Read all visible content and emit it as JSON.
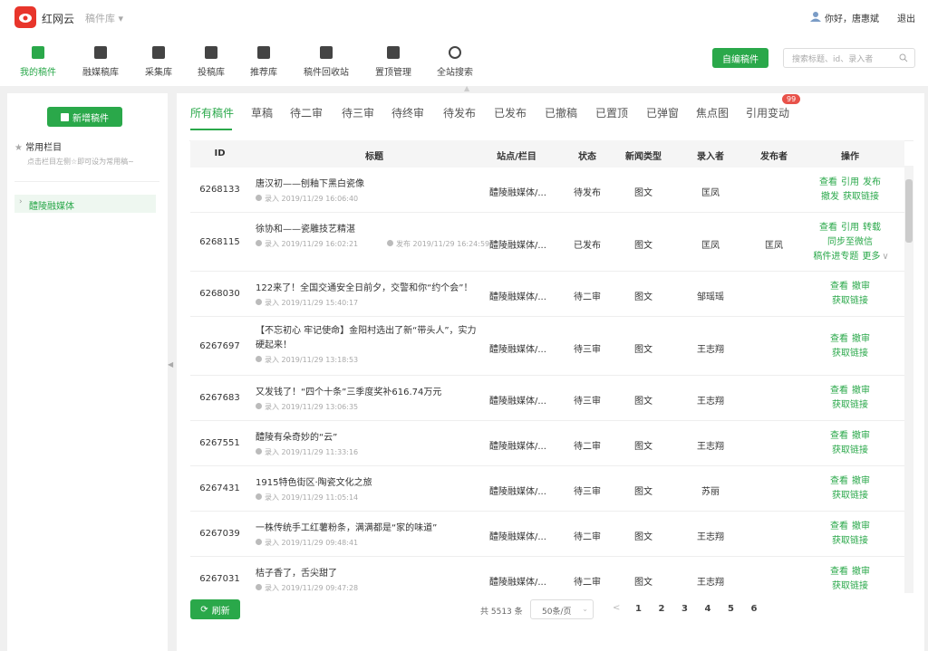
{
  "header": {
    "brand": "红网云",
    "module": "稿件库",
    "greeting": "你好，唐惠斌",
    "logout": "退出"
  },
  "toolbar": {
    "items": [
      "我的稿件",
      "融媒稿库",
      "采集库",
      "投稿库",
      "推荐库",
      "稿件回收站",
      "置顶管理",
      "全站搜索"
    ],
    "create": "自编稿件",
    "search_placeholder": "搜索标题、id、录入者"
  },
  "sidebar": {
    "new_button": "新增稿件",
    "favorites_title": "常用栏目",
    "favorites_hint": "点击栏目左侧☆即可设为常用稿~",
    "columns": [
      "醴陵融媒体"
    ]
  },
  "tabs": {
    "items": [
      "所有稿件",
      "草稿",
      "待二审",
      "待三审",
      "待终审",
      "待发布",
      "已发布",
      "已撤稿",
      "已置顶",
      "已弹窗",
      "焦点图",
      "引用变动"
    ],
    "badge": "99"
  },
  "table": {
    "headers": [
      "ID",
      "标题",
      "站点/栏目",
      "状态",
      "新闻类型",
      "录入者",
      "发布者",
      "操作"
    ],
    "rows": [
      {
        "id": "6268133",
        "title": "唐汉初——刨釉下黑白瓷像",
        "meta": [
          "录入 2019/11/29 16:06:40"
        ],
        "site": "醴陵融媒体/...",
        "status": "待发布",
        "type": "图文",
        "editor": "匡凤",
        "actions": [
          [
            "查看",
            "引用",
            "发布"
          ],
          [
            "撤发",
            "获取链接"
          ]
        ]
      },
      {
        "id": "6268115",
        "title": "徐协和——瓷雕技艺精湛",
        "meta": [
          "录入 2019/11/29 16:02:21",
          "发布 2019/11/29 16:24:59"
        ],
        "site": "醴陵融媒体/...",
        "status": "已发布",
        "type": "图文",
        "editor": "匡凤",
        "publisher": "匡凤",
        "actions": [
          [
            "查看",
            "引用",
            "转载"
          ],
          [
            "同步至微信"
          ],
          [
            "稿件进专题",
            "更多"
          ]
        ]
      },
      {
        "id": "6268030",
        "title": "122来了！全国交通安全日前夕，交警和你“约个会”！",
        "meta": [
          "录入 2019/11/29 15:40:17"
        ],
        "site": "醴陵融媒体/...",
        "status": "待二审",
        "type": "图文",
        "editor": "邹瑶瑶",
        "actions": [
          [
            "查看",
            "撤审"
          ],
          [
            "获取链接"
          ]
        ]
      },
      {
        "id": "6267697",
        "title": "【不忘初心 牢记使命】金阳村选出了新“带头人”，实力硬起来！",
        "meta": [
          "录入 2019/11/29 13:18:53"
        ],
        "site": "醴陵融媒体/...",
        "status": "待三审",
        "type": "图文",
        "editor": "王志翔",
        "actions": [
          [
            "查看",
            "撤审"
          ],
          [
            "获取链接"
          ]
        ]
      },
      {
        "id": "6267683",
        "title": "又发钱了！“四个十条”三季度奖补616.74万元",
        "meta": [
          "录入 2019/11/29 13:06:35"
        ],
        "site": "醴陵融媒体/...",
        "status": "待三审",
        "type": "图文",
        "editor": "王志翔",
        "actions": [
          [
            "查看",
            "撤审"
          ],
          [
            "获取链接"
          ]
        ]
      },
      {
        "id": "6267551",
        "title": "醴陵有朵奇妙的“云”",
        "meta": [
          "录入 2019/11/29 11:33:16"
        ],
        "site": "醴陵融媒体/...",
        "status": "待二审",
        "type": "图文",
        "editor": "王志翔",
        "actions": [
          [
            "查看",
            "撤审"
          ],
          [
            "获取链接"
          ]
        ]
      },
      {
        "id": "6267431",
        "title": "1915特色街区·陶瓷文化之旅",
        "meta": [
          "录入 2019/11/29 11:05:14"
        ],
        "site": "醴陵融媒体/...",
        "status": "待三审",
        "type": "图文",
        "editor": "苏丽",
        "actions": [
          [
            "查看",
            "撤审"
          ],
          [
            "获取链接"
          ]
        ]
      },
      {
        "id": "6267039",
        "title": "一株传统手工红薯粉条，满满都是“家的味道”",
        "meta": [
          "录入 2019/11/29 09:48:41"
        ],
        "site": "醴陵融媒体/...",
        "status": "待二审",
        "type": "图文",
        "editor": "王志翔",
        "actions": [
          [
            "查看",
            "撤审"
          ],
          [
            "获取链接"
          ]
        ]
      },
      {
        "id": "6267031",
        "title": "桔子香了，舌尖甜了",
        "meta": [
          "录入 2019/11/29 09:47:28"
        ],
        "site": "醴陵融媒体/...",
        "status": "待二审",
        "type": "图文",
        "editor": "王志翔",
        "actions": [
          [
            "查看",
            "撤审"
          ],
          [
            "获取链接"
          ]
        ]
      }
    ]
  },
  "footer": {
    "refresh": "刷新",
    "total": "共 5513 条",
    "page_size": "50条/页",
    "pages": [
      "1",
      "2",
      "3",
      "4",
      "5",
      "6"
    ]
  }
}
